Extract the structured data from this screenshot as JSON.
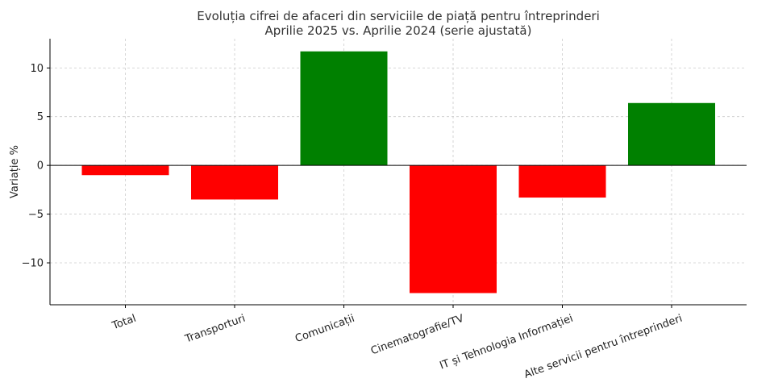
{
  "chart_data": {
    "type": "bar",
    "title_lines": [
      "Evoluția cifrei de afaceri din serviciile de piață pentru întreprinderi",
      "Aprilie 2025 vs. Aprilie 2024 (serie ajustată)"
    ],
    "xlabel": "",
    "ylabel": "Variație %",
    "categories": [
      "Total",
      "Transporturi",
      "Comunicații",
      "Cinematografie/TV",
      "IT și Tehnologia Informației",
      "Alte servicii pentru întreprinderi"
    ],
    "values": [
      -1.0,
      -3.5,
      11.7,
      -13.1,
      -3.3,
      6.4
    ],
    "ylim": [
      -14.3,
      13.0
    ],
    "yticks": [
      -10,
      -5,
      0,
      5,
      10
    ],
    "ytick_labels": [
      "−10",
      "−5",
      "0",
      "5",
      "10"
    ],
    "grid": true,
    "colors": {
      "positive": "#008000",
      "negative": "#ff0000"
    }
  }
}
